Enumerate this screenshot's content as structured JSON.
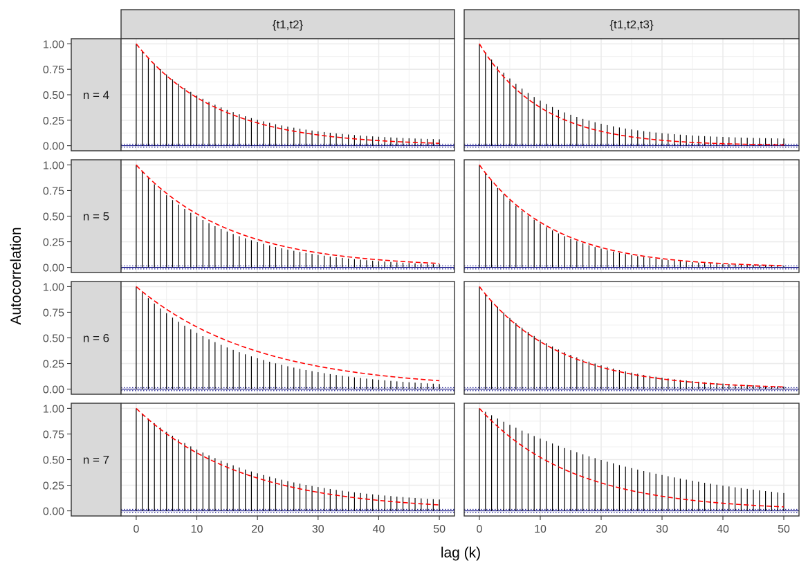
{
  "chart_data": {
    "type": "faceted-acf",
    "xlabel": "lag (k)",
    "ylabel": "Autocorrelation",
    "col_labels": [
      "{t1,t2}",
      "{t1,t2,t3}"
    ],
    "row_labels": [
      "n = 4",
      "n = 5",
      "n = 6",
      "n = 7"
    ],
    "x_ticks": [
      0,
      10,
      20,
      30,
      40,
      50
    ],
    "y_ticks": [
      "0.00",
      "0.25",
      "0.50",
      "0.75",
      "1.00"
    ],
    "xlim": [
      -2.5,
      52.5
    ],
    "ylim": [
      -0.05,
      1.05
    ],
    "lags": "0-50",
    "significance_band": 0.015,
    "colors": {
      "bars": "#000000",
      "theoretical_curve": "#ff0000",
      "zero_line": "#000080",
      "significance_lines": "#000080",
      "strip_fill": "#d9d9d9",
      "grid": "#ebebeb"
    },
    "panels": [
      {
        "row": "n = 4",
        "col": "{t1,t2}",
        "theory_rate": 0.075,
        "bar_rate": 0.075,
        "bar_floor": 0.04
      },
      {
        "row": "n = 4",
        "col": "{t1,t2,t3}",
        "theory_rate": 0.098,
        "bar_rate": 0.09,
        "bar_floor": 0.06
      },
      {
        "row": "n = 5",
        "col": "{t1,t2}",
        "theory_rate": 0.065,
        "bar_rate": 0.07,
        "bar_floor": 0.0
      },
      {
        "row": "n = 5",
        "col": "{t1,t2,t3}",
        "theory_rate": 0.082,
        "bar_rate": 0.085,
        "bar_floor": 0.0
      },
      {
        "row": "n = 6",
        "col": "{t1,t2}",
        "theory_rate": 0.05,
        "bar_rate": 0.06,
        "bar_floor": 0.0
      },
      {
        "row": "n = 6",
        "col": "{t1,t2,t3}",
        "theory_rate": 0.077,
        "bar_rate": 0.073,
        "bar_floor": 0.0
      },
      {
        "row": "n = 7",
        "col": "{t1,t2}",
        "theory_rate": 0.057,
        "bar_rate": 0.055,
        "bar_floor": 0.05
      },
      {
        "row": "n = 7",
        "col": "{t1,t2,t3}",
        "theory_rate": 0.065,
        "bar_rate": 0.035,
        "bar_floor": 0.0
      }
    ]
  }
}
